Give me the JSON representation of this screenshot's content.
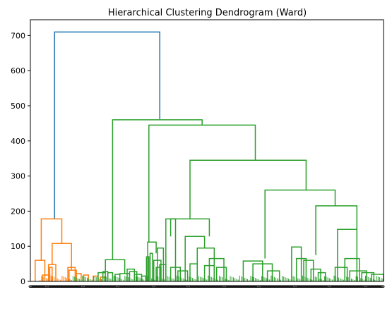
{
  "chart_data": {
    "type": "dendrogram",
    "title": "Hierarchical Clustering Dendrogram (Ward)",
    "xlabel": "",
    "ylabel": "",
    "ylim": [
      0,
      745
    ],
    "yticks": [
      0,
      100,
      200,
      300,
      400,
      500,
      600,
      700
    ],
    "grid": false,
    "leaf_count": 495,
    "leaf_label_text": "0",
    "colors": {
      "root": "#1f77b4",
      "cluster_orange": "#ff7f0e",
      "cluster_green": "#2ca02c",
      "axis": "#000000"
    },
    "links": [
      {
        "x": [
          6,
          6,
          49.5,
          49.5
        ],
        "y": [
          178,
          710,
          710,
          462
        ],
        "color": "root"
      },
      {
        "x": [
          0.5,
          0.5,
          9,
          9
        ],
        "y": [
          60,
          178,
          178,
          108
        ],
        "color": "cluster_orange"
      },
      {
        "x": [
          -2,
          -2,
          2,
          2
        ],
        "y": [
          0,
          60,
          60,
          0
        ],
        "color": "cluster_orange"
      },
      {
        "x": [
          1,
          1,
          4,
          4
        ],
        "y": [
          0,
          18,
          18,
          0
        ],
        "color": "cluster_orange"
      },
      {
        "x": [
          5,
          5,
          13,
          13
        ],
        "y": [
          48,
          108,
          108,
          32
        ],
        "color": "cluster_orange"
      },
      {
        "x": [
          3.5,
          3.5,
          6.5,
          6.5
        ],
        "y": [
          0,
          48,
          48,
          0
        ],
        "color": "cluster_orange"
      },
      {
        "x": [
          4,
          4,
          5,
          5
        ],
        "y": [
          0,
          40,
          40,
          0
        ],
        "color": "cluster_orange"
      },
      {
        "x": [
          11.5,
          11.5,
          14.5,
          14.5
        ],
        "y": [
          0,
          40,
          40,
          0
        ],
        "color": "cluster_orange"
      },
      {
        "x": [
          12,
          12,
          15,
          15
        ],
        "y": [
          0,
          32,
          32,
          0
        ],
        "color": "cluster_orange"
      },
      {
        "x": [
          15,
          15,
          17,
          17
        ],
        "y": [
          0,
          22,
          22,
          0
        ],
        "color": "cluster_orange"
      },
      {
        "x": [
          18,
          18,
          20,
          20
        ],
        "y": [
          0,
          18,
          18,
          0
        ],
        "color": "cluster_orange"
      },
      {
        "x": [
          22,
          22,
          24,
          24
        ],
        "y": [
          0,
          15,
          15,
          0
        ],
        "color": "cluster_orange"
      },
      {
        "x": [
          25,
          25,
          27,
          27
        ],
        "y": [
          0,
          12,
          12,
          0
        ],
        "color": "cluster_orange"
      },
      {
        "x": [
          30,
          30,
          67,
          67
        ],
        "y": [
          62,
          460,
          460,
          445
        ],
        "color": "cluster_green"
      },
      {
        "x": [
          27,
          27,
          35,
          35
        ],
        "y": [
          28,
          62,
          62,
          22
        ],
        "color": "cluster_green"
      },
      {
        "x": [
          26,
          26,
          28,
          28
        ],
        "y": [
          0,
          28,
          28,
          0
        ],
        "color": "cluster_green"
      },
      {
        "x": [
          24,
          24,
          27,
          27
        ],
        "y": [
          0,
          25,
          25,
          0
        ],
        "color": "cluster_green"
      },
      {
        "x": [
          28,
          28,
          30,
          30
        ],
        "y": [
          0,
          25,
          25,
          0
        ],
        "color": "cluster_green"
      },
      {
        "x": [
          31,
          31,
          33,
          33
        ],
        "y": [
          0,
          20,
          20,
          0
        ],
        "color": "cluster_green"
      },
      {
        "x": [
          33,
          33,
          37,
          37
        ],
        "y": [
          0,
          22,
          22,
          0
        ],
        "color": "cluster_green"
      },
      {
        "x": [
          36,
          36,
          39,
          39
        ],
        "y": [
          0,
          35,
          35,
          0
        ],
        "color": "cluster_green"
      },
      {
        "x": [
          37,
          37,
          40,
          40
        ],
        "y": [
          0,
          28,
          28,
          0
        ],
        "color": "cluster_green"
      },
      {
        "x": [
          39,
          39,
          42,
          42
        ],
        "y": [
          0,
          20,
          20,
          0
        ],
        "color": "cluster_green"
      },
      {
        "x": [
          42,
          42,
          44,
          44
        ],
        "y": [
          0,
          15,
          15,
          0
        ],
        "color": "cluster_green"
      },
      {
        "x": [
          45,
          45,
          89,
          89
        ],
        "y": [
          112,
          445,
          445,
          345
        ],
        "color": "cluster_green"
      },
      {
        "x": [
          44.5,
          44.5,
          48,
          48
        ],
        "y": [
          0,
          112,
          112,
          80
        ],
        "color": "cluster_green"
      },
      {
        "x": [
          44,
          44,
          45,
          45
        ],
        "y": [
          0,
          70,
          70,
          0
        ],
        "color": "cluster_green"
      },
      {
        "x": [
          45.5,
          45.5,
          46.5,
          46.5
        ],
        "y": [
          0,
          80,
          80,
          0
        ],
        "color": "cluster_green"
      },
      {
        "x": [
          47,
          47,
          50,
          50
        ],
        "y": [
          0,
          60,
          60,
          0
        ],
        "color": "cluster_green"
      },
      {
        "x": [
          48,
          48,
          50,
          50
        ],
        "y": [
          0,
          40,
          40,
          0
        ],
        "color": "cluster_green"
      },
      {
        "x": [
          48.5,
          48.5,
          51,
          51
        ],
        "y": [
          0,
          95,
          95,
          0
        ],
        "color": "cluster_green"
      },
      {
        "x": [
          49.5,
          49.5,
          52,
          52
        ],
        "y": [
          0,
          48,
          48,
          0
        ],
        "color": "cluster_green"
      },
      {
        "x": [
          62,
          62,
          110,
          110
        ],
        "y": [
          178,
          345,
          345,
          260
        ],
        "color": "cluster_green"
      },
      {
        "x": [
          54,
          54,
          70,
          70
        ],
        "y": [
          128,
          178,
          178,
          128
        ],
        "color": "cluster_green"
      },
      {
        "x": [
          52,
          52,
          56,
          56
        ],
        "y": [
          0,
          178,
          178,
          0
        ],
        "color": "cluster_green"
      },
      {
        "x": [
          54,
          54,
          58,
          58
        ],
        "y": [
          0,
          40,
          40,
          0
        ],
        "color": "cluster_green"
      },
      {
        "x": [
          57,
          57,
          61,
          61
        ],
        "y": [
          0,
          30,
          30,
          0
        ],
        "color": "cluster_green"
      },
      {
        "x": [
          60,
          60,
          68,
          68
        ],
        "y": [
          0,
          128,
          128,
          95
        ],
        "color": "cluster_green"
      },
      {
        "x": [
          62,
          62,
          65,
          65
        ],
        "y": [
          0,
          50,
          50,
          0
        ],
        "color": "cluster_green"
      },
      {
        "x": [
          65,
          65,
          72,
          72
        ],
        "y": [
          0,
          95,
          95,
          0
        ],
        "color": "cluster_green"
      },
      {
        "x": [
          68,
          68,
          72,
          72
        ],
        "y": [
          0,
          45,
          45,
          0
        ],
        "color": "cluster_green"
      },
      {
        "x": [
          70,
          70,
          76,
          76
        ],
        "y": [
          0,
          65,
          65,
          0
        ],
        "color": "cluster_green"
      },
      {
        "x": [
          73,
          73,
          77,
          77
        ],
        "y": [
          0,
          40,
          40,
          0
        ],
        "color": "cluster_green"
      },
      {
        "x": [
          93,
          93,
          122,
          122
        ],
        "y": [
          65,
          260,
          260,
          215
        ],
        "color": "cluster_green"
      },
      {
        "x": [
          84,
          84,
          92,
          92
        ],
        "y": [
          0,
          58,
          58,
          0
        ],
        "color": "cluster_green"
      },
      {
        "x": [
          88,
          88,
          96,
          96
        ],
        "y": [
          0,
          50,
          50,
          0
        ],
        "color": "cluster_green"
      },
      {
        "x": [
          94,
          94,
          99,
          99
        ],
        "y": [
          0,
          30,
          30,
          0
        ],
        "color": "cluster_green"
      },
      {
        "x": [
          114,
          114,
          131,
          131
        ],
        "y": [
          75,
          215,
          215,
          148
        ],
        "color": "cluster_green"
      },
      {
        "x": [
          104,
          104,
          108,
          108
        ],
        "y": [
          0,
          98,
          98,
          0
        ],
        "color": "cluster_green"
      },
      {
        "x": [
          106,
          106,
          110,
          110
        ],
        "y": [
          0,
          65,
          65,
          0
        ],
        "color": "cluster_green"
      },
      {
        "x": [
          109,
          109,
          113,
          113
        ],
        "y": [
          0,
          60,
          60,
          0
        ],
        "color": "cluster_green"
      },
      {
        "x": [
          112,
          112,
          116,
          116
        ],
        "y": [
          0,
          35,
          35,
          0
        ],
        "color": "cluster_green"
      },
      {
        "x": [
          115,
          115,
          118,
          118
        ],
        "y": [
          0,
          25,
          25,
          0
        ],
        "color": "cluster_green"
      },
      {
        "x": [
          123,
          123,
          131,
          131
        ],
        "y": [
          0,
          148,
          148,
          0
        ],
        "color": "cluster_green"
      },
      {
        "x": [
          122,
          122,
          127,
          127
        ],
        "y": [
          0,
          40,
          40,
          0
        ],
        "color": "cluster_green"
      },
      {
        "x": [
          126,
          126,
          132,
          132
        ],
        "y": [
          0,
          65,
          65,
          0
        ],
        "color": "cluster_green"
      },
      {
        "x": [
          128,
          128,
          135,
          135
        ],
        "y": [
          0,
          30,
          30,
          0
        ],
        "color": "cluster_green"
      },
      {
        "x": [
          133,
          133,
          138,
          138
        ],
        "y": [
          0,
          25,
          25,
          0
        ],
        "color": "cluster_green"
      },
      {
        "x": [
          137,
          137,
          142,
          142
        ],
        "y": [
          0,
          20,
          20,
          0
        ],
        "color": "cluster_green"
      }
    ]
  }
}
